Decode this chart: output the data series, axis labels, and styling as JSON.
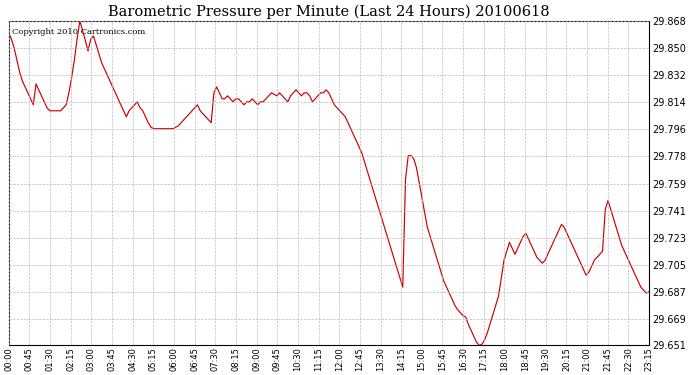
{
  "title": "Barometric Pressure per Minute (Last 24 Hours) 20100618",
  "copyright": "Copyright 2010 Cartronics.com",
  "line_color": "#cc0000",
  "background_color": "#ffffff",
  "plot_bg_color": "#ffffff",
  "grid_color": "#bbbbbb",
  "ylim": [
    29.651,
    29.868
  ],
  "yticks": [
    29.651,
    29.669,
    29.687,
    29.705,
    29.723,
    29.741,
    29.759,
    29.778,
    29.796,
    29.814,
    29.832,
    29.85,
    29.868
  ],
  "xtick_labels": [
    "00:00",
    "00:45",
    "01:30",
    "02:15",
    "03:00",
    "03:45",
    "04:30",
    "05:15",
    "06:00",
    "06:45",
    "07:30",
    "08:15",
    "09:00",
    "09:45",
    "10:30",
    "11:15",
    "12:00",
    "12:45",
    "13:30",
    "14:15",
    "15:00",
    "15:45",
    "16:30",
    "17:15",
    "18:00",
    "18:45",
    "19:30",
    "20:15",
    "21:00",
    "21:45",
    "22:30",
    "23:15"
  ],
  "pressure_data": [
    29.86,
    29.856,
    29.85,
    29.842,
    29.834,
    29.828,
    29.824,
    29.82,
    29.816,
    29.812,
    29.826,
    29.822,
    29.818,
    29.814,
    29.81,
    29.808,
    29.808,
    29.808,
    29.808,
    29.808,
    29.81,
    29.812,
    29.82,
    29.83,
    29.842,
    29.856,
    29.868,
    29.862,
    29.855,
    29.848,
    29.856,
    29.858,
    29.852,
    29.846,
    29.84,
    29.836,
    29.832,
    29.828,
    29.824,
    29.82,
    29.816,
    29.812,
    29.808,
    29.804,
    29.808,
    29.81,
    29.812,
    29.814,
    29.81,
    29.808,
    29.804,
    29.8,
    29.797,
    29.796,
    29.796,
    29.796,
    29.796,
    29.796,
    29.796,
    29.796,
    29.796,
    29.797,
    29.798,
    29.8,
    29.802,
    29.804,
    29.806,
    29.808,
    29.81,
    29.812,
    29.808,
    29.806,
    29.804,
    29.802,
    29.8,
    29.82,
    29.824,
    29.82,
    29.816,
    29.816,
    29.818,
    29.816,
    29.814,
    29.816,
    29.816,
    29.814,
    29.812,
    29.814,
    29.814,
    29.816,
    29.814,
    29.812,
    29.814,
    29.814,
    29.816,
    29.818,
    29.82,
    29.819,
    29.818,
    29.82,
    29.818,
    29.816,
    29.814,
    29.818,
    29.82,
    29.822,
    29.82,
    29.818,
    29.82,
    29.82,
    29.818,
    29.814,
    29.816,
    29.818,
    29.82,
    29.82,
    29.822,
    29.82,
    29.816,
    29.812,
    29.81,
    29.808,
    29.806,
    29.804,
    29.8,
    29.796,
    29.792,
    29.788,
    29.784,
    29.78,
    29.774,
    29.768,
    29.762,
    29.756,
    29.75,
    29.744,
    29.738,
    29.732,
    29.726,
    29.72,
    29.714,
    29.708,
    29.702,
    29.696,
    29.69,
    29.762,
    29.778,
    29.778,
    29.776,
    29.77,
    29.76,
    29.75,
    29.74,
    29.73,
    29.724,
    29.718,
    29.712,
    29.706,
    29.7,
    29.694,
    29.69,
    29.686,
    29.682,
    29.678,
    29.675,
    29.673,
    29.671,
    29.67,
    29.665,
    29.661,
    29.657,
    29.653,
    29.651,
    29.652,
    29.655,
    29.66,
    29.666,
    29.672,
    29.678,
    29.684,
    29.696,
    29.708,
    29.714,
    29.72,
    29.716,
    29.712,
    29.716,
    29.72,
    29.724,
    29.726,
    29.722,
    29.718,
    29.714,
    29.71,
    29.708,
    29.706,
    29.708,
    29.712,
    29.716,
    29.72,
    29.724,
    29.728,
    29.732,
    29.73,
    29.726,
    29.722,
    29.718,
    29.714,
    29.71,
    29.706,
    29.702,
    29.698,
    29.7,
    29.704,
    29.708,
    29.71,
    29.712,
    29.714,
    29.742,
    29.748,
    29.742,
    29.736,
    29.73,
    29.724,
    29.718,
    29.714,
    29.71,
    29.706,
    29.702,
    29.698,
    29.694,
    29.69,
    29.688,
    29.686,
    29.687
  ]
}
